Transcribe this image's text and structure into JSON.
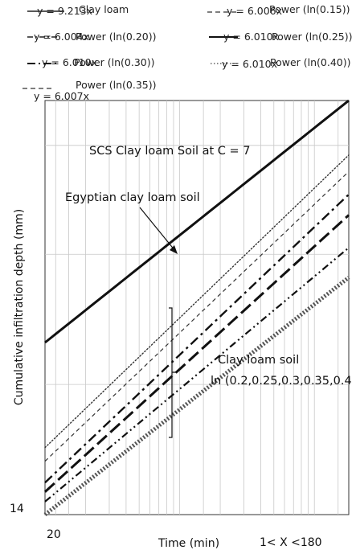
{
  "chart_data": {
    "type": "line",
    "title": "",
    "xlabel": "Time (min)",
    "xrange_label": "1< X <180",
    "ylabel": "Cumulative infiltration depth (mm)",
    "x_tick_labels": [
      "20"
    ],
    "y_tick_labels": [
      "14"
    ],
    "x_scale": "log",
    "y_scale": "log",
    "grid": true,
    "legend_placement": "top",
    "legend": [
      {
        "series": "Clay loam",
        "equation": "y = 9.213x",
        "style": "solid-thick"
      },
      {
        "series": "Power (ln(0.15))",
        "equation": "y = 6.006x",
        "style": "dotted-fine"
      },
      {
        "series": "Power (ln(0.20))",
        "equation": "y = 6.004x",
        "style": "dash-dot-dot"
      },
      {
        "series": "Power (ln(0.25))",
        "equation": "y = 6.010x",
        "style": "long-dash-thick"
      },
      {
        "series": "Power (ln(0.30))",
        "equation": "y = 6.010x",
        "style": "dash-dot"
      },
      {
        "series": "Power (ln(0.40))",
        "equation": "y = 6.010x",
        "style": "dotted"
      },
      {
        "series": "Power (ln(0.35))",
        "equation": "y = 6.007x",
        "style": "dashed-fine"
      }
    ],
    "annotations": [
      "SCS Clay loam Soil at C = 7",
      "Egyptian clay loam soil",
      "Clay loam soil",
      "ln (0.2,0.25,0.3,0.35,0.4"
    ],
    "series": [
      {
        "style": "solid-thick",
        "x": [
          1,
          180
        ],
        "y": [
          35,
          127
        ]
      },
      {
        "style": "dotted-fine",
        "x": [
          1,
          180
        ],
        "y": [
          20,
          95
        ]
      },
      {
        "style": "dashed-fine",
        "x": [
          1,
          180
        ],
        "y": [
          18.6,
          87
        ]
      },
      {
        "style": "dash-dot",
        "x": [
          1,
          180
        ],
        "y": [
          16.6,
          77
        ]
      },
      {
        "style": "long-dash-thick",
        "x": [
          1,
          180
        ],
        "y": [
          15.8,
          69
        ]
      },
      {
        "style": "dash-dot-dot",
        "x": [
          1,
          180
        ],
        "y": [
          15,
          58
        ]
      },
      {
        "style": "dotted-thick",
        "x": [
          1,
          180
        ],
        "y": [
          14,
          49.5
        ]
      }
    ]
  }
}
